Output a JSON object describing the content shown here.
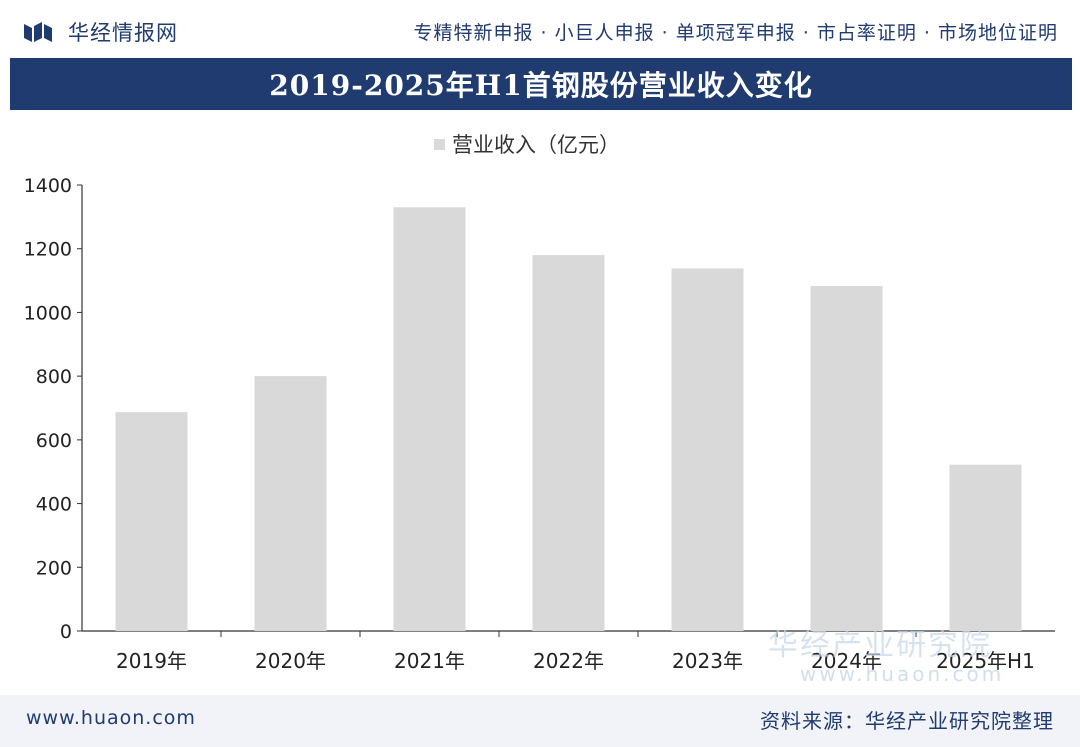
{
  "header": {
    "brand": "华经情报网",
    "services": "专精特新申报 · 小巨人申报 · 单项冠军申报 · 市占率证明 · 市场地位证明"
  },
  "colors": {
    "navy": "#1f3b6f",
    "bar": "#d9d9d9",
    "axis": "#333333"
  },
  "chart_data": {
    "type": "bar",
    "title": "2019-2025年H1首钢股份营业收入变化",
    "categories": [
      "2019年",
      "2020年",
      "2021年",
      "2022年",
      "2023年",
      "2024年",
      "2025年H1"
    ],
    "series": [
      {
        "name": "营业收入（亿元）",
        "values": [
          687,
          800,
          1330,
          1180,
          1138,
          1083,
          522
        ]
      }
    ],
    "ylim": [
      0,
      1400
    ],
    "yticks": [
      0,
      200,
      400,
      600,
      800,
      1000,
      1200,
      1400
    ],
    "grid": false,
    "legend": "top-center"
  },
  "footer": {
    "url": "www.huaon.com",
    "source": "资料来源：华经产业研究院整理"
  },
  "watermark": {
    "brand": "华经产业研究院",
    "url": "www.huaon.com"
  }
}
